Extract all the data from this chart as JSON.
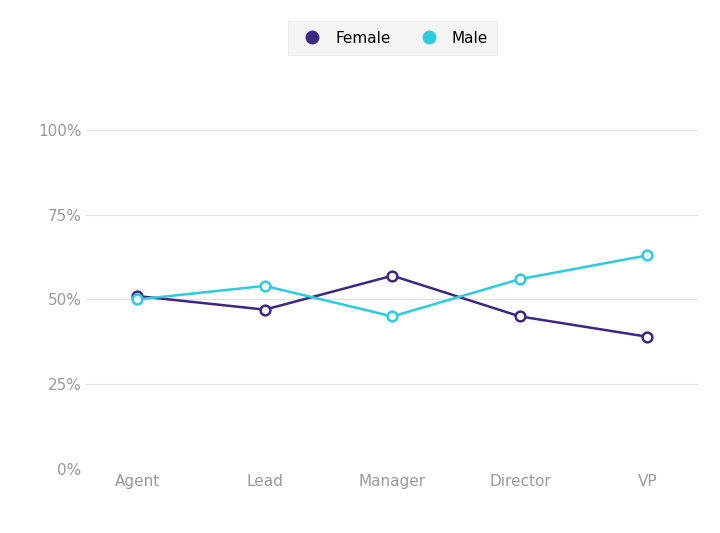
{
  "categories": [
    "Agent",
    "Lead",
    "Manager",
    "Director",
    "VP"
  ],
  "female_values": [
    0.51,
    0.47,
    0.57,
    0.45,
    0.39
  ],
  "male_values": [
    0.5,
    0.54,
    0.45,
    0.56,
    0.63
  ],
  "female_color": "#3d2785",
  "male_color": "#2ecbdf",
  "background_color": "#ffffff",
  "yticks": [
    0.0,
    0.25,
    0.5,
    0.75,
    1.0
  ],
  "ytick_labels": [
    "0%",
    "25%",
    "50%",
    "75%",
    "100%"
  ],
  "legend_female": "Female",
  "legend_male": "Male",
  "marker_size": 7,
  "line_width": 1.8,
  "grid_color": "#e0e0e0",
  "label_color": "#999999",
  "legend_bg": "#f2f2f2",
  "legend_edge": "#e0e0e0"
}
